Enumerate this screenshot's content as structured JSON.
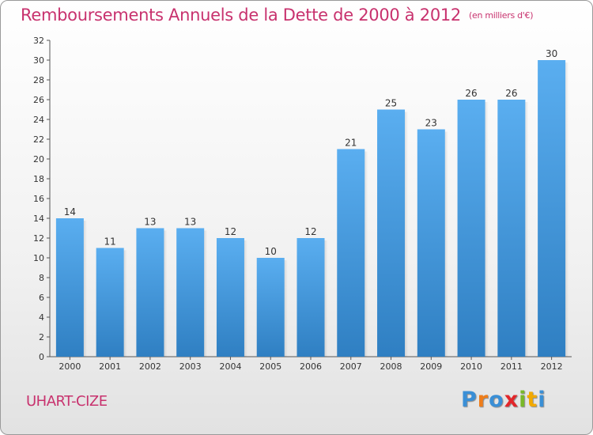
{
  "chart_data": {
    "type": "bar",
    "title": "Remboursements Annuels de la Dette de 2000 à 2012",
    "subtitle": "(en milliers d'€)",
    "categories": [
      "2000",
      "2001",
      "2002",
      "2003",
      "2004",
      "2005",
      "2006",
      "2007",
      "2008",
      "2009",
      "2010",
      "2011",
      "2012"
    ],
    "values": [
      14,
      11,
      13,
      13,
      12,
      10,
      12,
      21,
      25,
      23,
      26,
      26,
      30
    ],
    "ylim": [
      0,
      32
    ],
    "yticks": [
      0,
      2,
      4,
      6,
      8,
      10,
      12,
      14,
      16,
      18,
      20,
      22,
      24,
      26,
      28,
      30,
      32
    ],
    "xlabel": "",
    "ylabel": "",
    "grid": false,
    "bar_color": "#4a9ee0"
  },
  "footer": {
    "commune": "UHART-CIZE",
    "logo_letters": [
      "P",
      "r",
      "o",
      "x",
      "i",
      "t",
      "i"
    ],
    "logo_colors": [
      "#3a8fd6",
      "#ef7d1a",
      "#3a8fd6",
      "#e2262a",
      "#79b829",
      "#f2a900",
      "#3a8fd6"
    ]
  }
}
